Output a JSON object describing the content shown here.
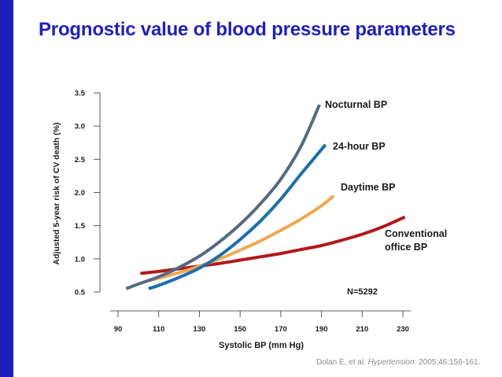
{
  "slide": {
    "title": "Prognostic value of blood pressure parameters",
    "accent_color": "#1f1fbf",
    "title_color": "#1f1fbf",
    "citation": {
      "authors": "Dolan E, et al. ",
      "journal": "Hypertension",
      "details": ". 2005;46:156-161."
    }
  },
  "chart_data": {
    "type": "line",
    "title": "",
    "xlabel": "Systolic BP (mm Hg)",
    "ylabel": "Adjusted 5-year risk of CV death (%)",
    "xlim": [
      90,
      230
    ],
    "ylim": [
      0.5,
      3.5
    ],
    "xticks": [
      90,
      110,
      130,
      150,
      170,
      190,
      210,
      230
    ],
    "yticks": [
      0.5,
      1.0,
      1.5,
      2.0,
      2.5,
      3.0,
      3.5
    ],
    "ytick_labels": [
      "0.5",
      "1.0",
      "1.5",
      "2.0",
      "2.5",
      "3.0",
      "3.5"
    ],
    "grid": false,
    "annotation": "N=5292",
    "series": [
      {
        "name": "Nocturnal BP",
        "color": "#556b82",
        "x": [
          94,
          100,
          110,
          120,
          130,
          140,
          150,
          160,
          170,
          180,
          189
        ],
        "y": [
          0.55,
          0.62,
          0.73,
          0.87,
          1.04,
          1.26,
          1.52,
          1.83,
          2.2,
          2.7,
          3.32
        ]
      },
      {
        "name": "24-hour BP",
        "color": "#1a6fad",
        "x": [
          105,
          110,
          120,
          130,
          140,
          150,
          160,
          170,
          180,
          192
        ],
        "y": [
          0.55,
          0.6,
          0.72,
          0.86,
          1.05,
          1.29,
          1.57,
          1.9,
          2.28,
          2.72
        ]
      },
      {
        "name": "Daytime BP",
        "color": "#f0a850",
        "x": [
          105,
          110,
          120,
          130,
          140,
          150,
          160,
          170,
          180,
          190,
          196
        ],
        "y": [
          0.67,
          0.71,
          0.79,
          0.89,
          1.0,
          1.13,
          1.27,
          1.43,
          1.6,
          1.8,
          1.95
        ]
      },
      {
        "name": "Conventional office BP",
        "label_lines": [
          "Conventional",
          "office BP"
        ],
        "color": "#b3171b",
        "x": [
          101,
          110,
          120,
          130,
          140,
          150,
          160,
          170,
          180,
          190,
          200,
          210,
          220,
          231
        ],
        "y": [
          0.78,
          0.81,
          0.85,
          0.89,
          0.93,
          0.98,
          1.03,
          1.08,
          1.14,
          1.2,
          1.28,
          1.37,
          1.48,
          1.63
        ]
      }
    ]
  }
}
